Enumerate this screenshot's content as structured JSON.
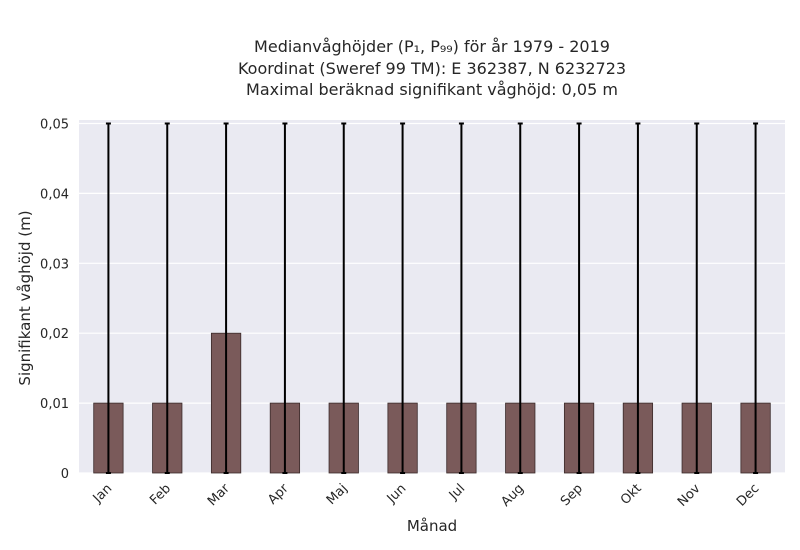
{
  "chart_data": {
    "type": "bar",
    "title_lines": [
      "Medianvåghöjder (P₁, P₉₉) för år 1979 - 2019",
      "Koordinat (Sweref 99 TM): E 362387, N 6232723",
      "Maximal beräknad signifikant våghöjd: 0,05 m"
    ],
    "xlabel": "Månad",
    "ylabel": "Signifikant våghöjd (m)",
    "categories": [
      "Jan",
      "Feb",
      "Mar",
      "Apr",
      "Maj",
      "Jun",
      "Jul",
      "Aug",
      "Sep",
      "Okt",
      "Nov",
      "Dec"
    ],
    "values": [
      0.01,
      0.01,
      0.02,
      0.01,
      0.01,
      0.01,
      0.01,
      0.01,
      0.01,
      0.01,
      0.01,
      0.01
    ],
    "error_low": [
      0,
      0,
      0,
      0,
      0,
      0,
      0,
      0,
      0,
      0,
      0,
      0
    ],
    "error_high": [
      0.05,
      0.05,
      0.05,
      0.05,
      0.05,
      0.05,
      0.05,
      0.05,
      0.05,
      0.05,
      0.05,
      0.05
    ],
    "ylim": [
      0,
      0.0505
    ],
    "yticks": [
      0,
      0.01,
      0.02,
      0.03,
      0.04,
      0.05
    ],
    "ytick_labels": [
      "0",
      "0,01",
      "0,02",
      "0,03",
      "0,04",
      "0,05"
    ],
    "grid": true,
    "colors": {
      "bar": "#7a5a5a",
      "bar_edge": "#3a2a2a",
      "error_bar": "#000000",
      "plot_background": "#eaeaf2",
      "grid": "#ffffff"
    }
  }
}
